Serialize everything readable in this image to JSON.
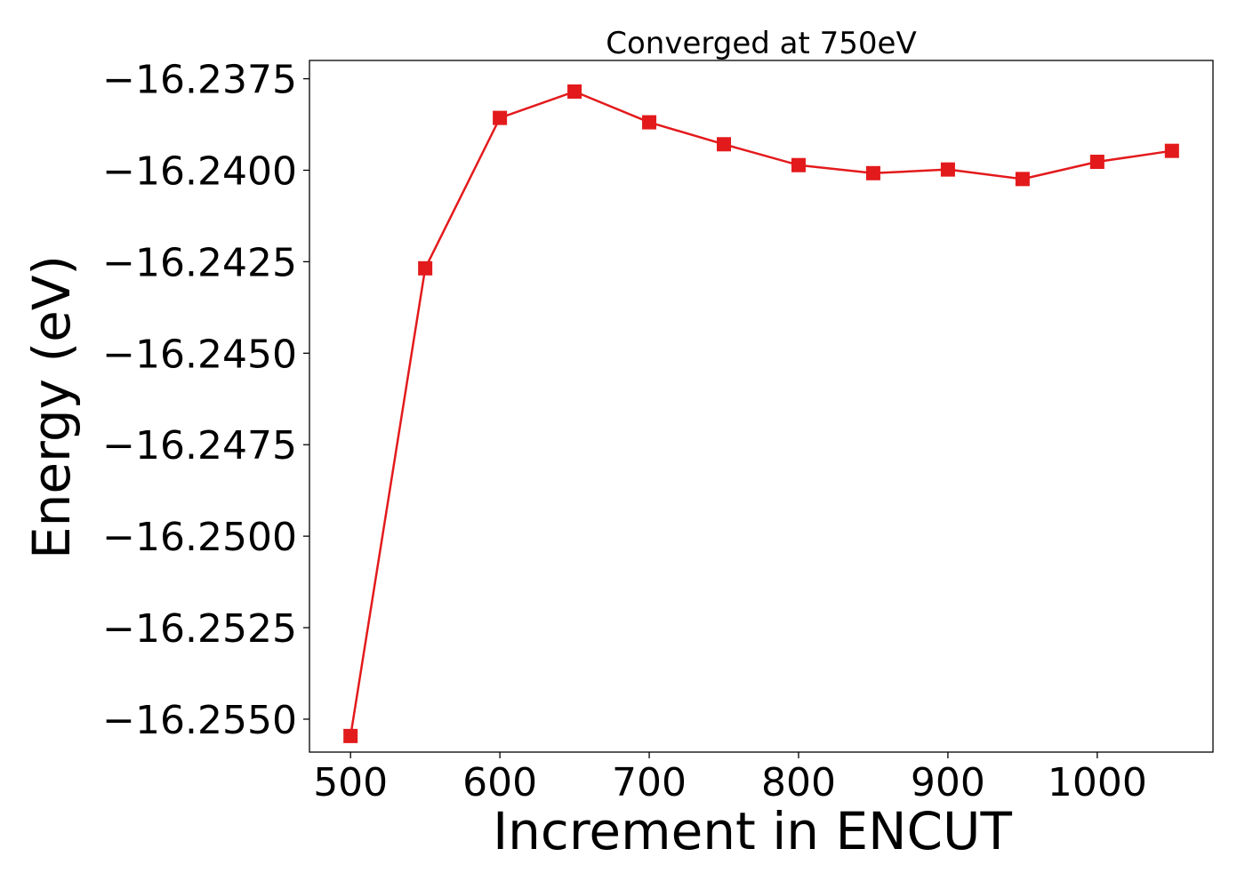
{
  "chart_data": {
    "type": "line",
    "title": "Converged at 750eV",
    "xlabel": "Increment in ENCUT",
    "ylabel": "Energy (eV)",
    "xlim": [
      472.5,
      1077.5
    ],
    "ylim": [
      -16.2559,
      -16.237
    ],
    "xticks": [
      500,
      600,
      700,
      800,
      900,
      1000
    ],
    "xtick_labels": [
      "500",
      "600",
      "700",
      "800",
      "900",
      "1000"
    ],
    "yticks": [
      -16.2375,
      -16.24,
      -16.2425,
      -16.245,
      -16.2475,
      -16.25,
      -16.2525,
      -16.255
    ],
    "ytick_labels": [
      "−16.2375",
      "−16.2400",
      "−16.2425",
      "−16.2450",
      "−16.2475",
      "−16.2500",
      "−16.2525",
      "−16.2550"
    ],
    "grid": false,
    "series": [
      {
        "color": "#e31a1c",
        "marker": "square",
        "x": [
          500,
          550,
          600,
          650,
          700,
          750,
          800,
          850,
          900,
          950,
          1000,
          1050
        ],
        "y": [
          -16.25546,
          -16.24268,
          -16.23857,
          -16.23785,
          -16.23869,
          -16.23929,
          -16.23986,
          -16.24008,
          -16.23998,
          -16.24024,
          -16.23977,
          -16.23947
        ]
      }
    ]
  }
}
